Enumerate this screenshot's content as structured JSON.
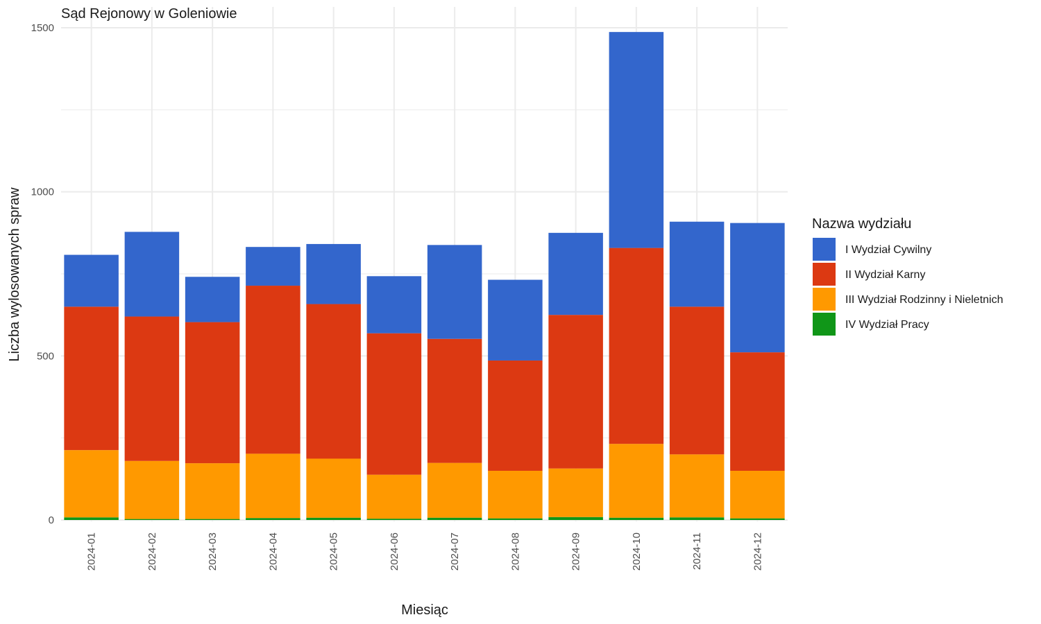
{
  "chart_data": {
    "type": "bar",
    "stacked": true,
    "title": "Sąd Rejonowy w Goleniowie",
    "xlabel": "Miesiąc",
    "ylabel": "Liczba wylosowanych spraw",
    "ylim": [
      0,
      1500
    ],
    "yticks": [
      0,
      500,
      1000,
      1500
    ],
    "grid": true,
    "legend_title": "Nazwa wydziału",
    "legend_position": "right",
    "categories": [
      "2024-01",
      "2024-02",
      "2024-03",
      "2024-04",
      "2024-05",
      "2024-06",
      "2024-07",
      "2024-08",
      "2024-09",
      "2024-10",
      "2024-11",
      "2024-12"
    ],
    "series": [
      {
        "name": "IV Wydział Pracy",
        "color": "#109618",
        "values": [
          8,
          3,
          3,
          6,
          7,
          4,
          7,
          5,
          9,
          7,
          8,
          5
        ]
      },
      {
        "name": "III Wydział Rodzinny i Nieletnich",
        "color": "#FF9900",
        "values": [
          205,
          177,
          170,
          196,
          180,
          134,
          167,
          145,
          148,
          225,
          192,
          145
        ]
      },
      {
        "name": "II Wydział Karny",
        "color": "#DC3912",
        "values": [
          437,
          440,
          430,
          512,
          471,
          431,
          378,
          336,
          468,
          597,
          450,
          361
        ]
      },
      {
        "name": "I Wydział Cywilny",
        "color": "#3366CC",
        "values": [
          158,
          258,
          138,
          118,
          183,
          174,
          286,
          246,
          250,
          658,
          259,
          394
        ]
      }
    ],
    "legend_order": [
      "I Wydział Cywilny",
      "II Wydział Karny",
      "III Wydział Rodzinny i Nieletnich",
      "IV Wydział Pracy"
    ]
  }
}
